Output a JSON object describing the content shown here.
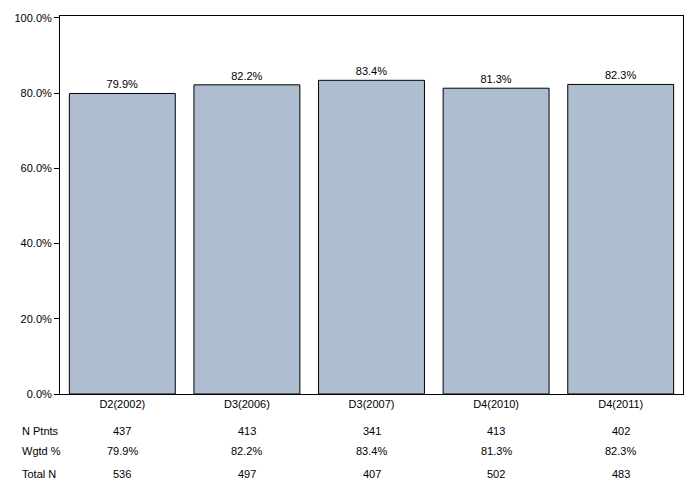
{
  "chart_data": {
    "type": "bar",
    "categories": [
      "D2(2002)",
      "D3(2006)",
      "D3(2007)",
      "D4(2010)",
      "D4(2011)"
    ],
    "values": [
      79.9,
      82.2,
      83.4,
      81.3,
      82.3
    ],
    "value_labels": [
      "79.9%",
      "82.2%",
      "83.4%",
      "81.3%",
      "82.3%"
    ],
    "data_labels": true,
    "color": "#aebdd0",
    "ylim": [
      0,
      100.5
    ],
    "yticks": [
      {
        "value": 0,
        "label": "0.0%"
      },
      {
        "value": 20,
        "label": "20.0%"
      },
      {
        "value": 40,
        "label": "40.0%"
      },
      {
        "value": 60,
        "label": "60.0%"
      },
      {
        "value": 80,
        "label": "80.0%"
      },
      {
        "value": 100,
        "label": "100.0%"
      }
    ],
    "grid": false
  },
  "table": {
    "rows": [
      {
        "label": "N Ptnts",
        "values": [
          437,
          413,
          341,
          413,
          402
        ]
      },
      {
        "label": "Wgtd %",
        "values": [
          "79.9%",
          "82.2%",
          "83.4%",
          "81.3%",
          "82.3%"
        ]
      },
      {
        "label": "Total N",
        "values": [
          536,
          497,
          407,
          502,
          483
        ]
      }
    ]
  }
}
